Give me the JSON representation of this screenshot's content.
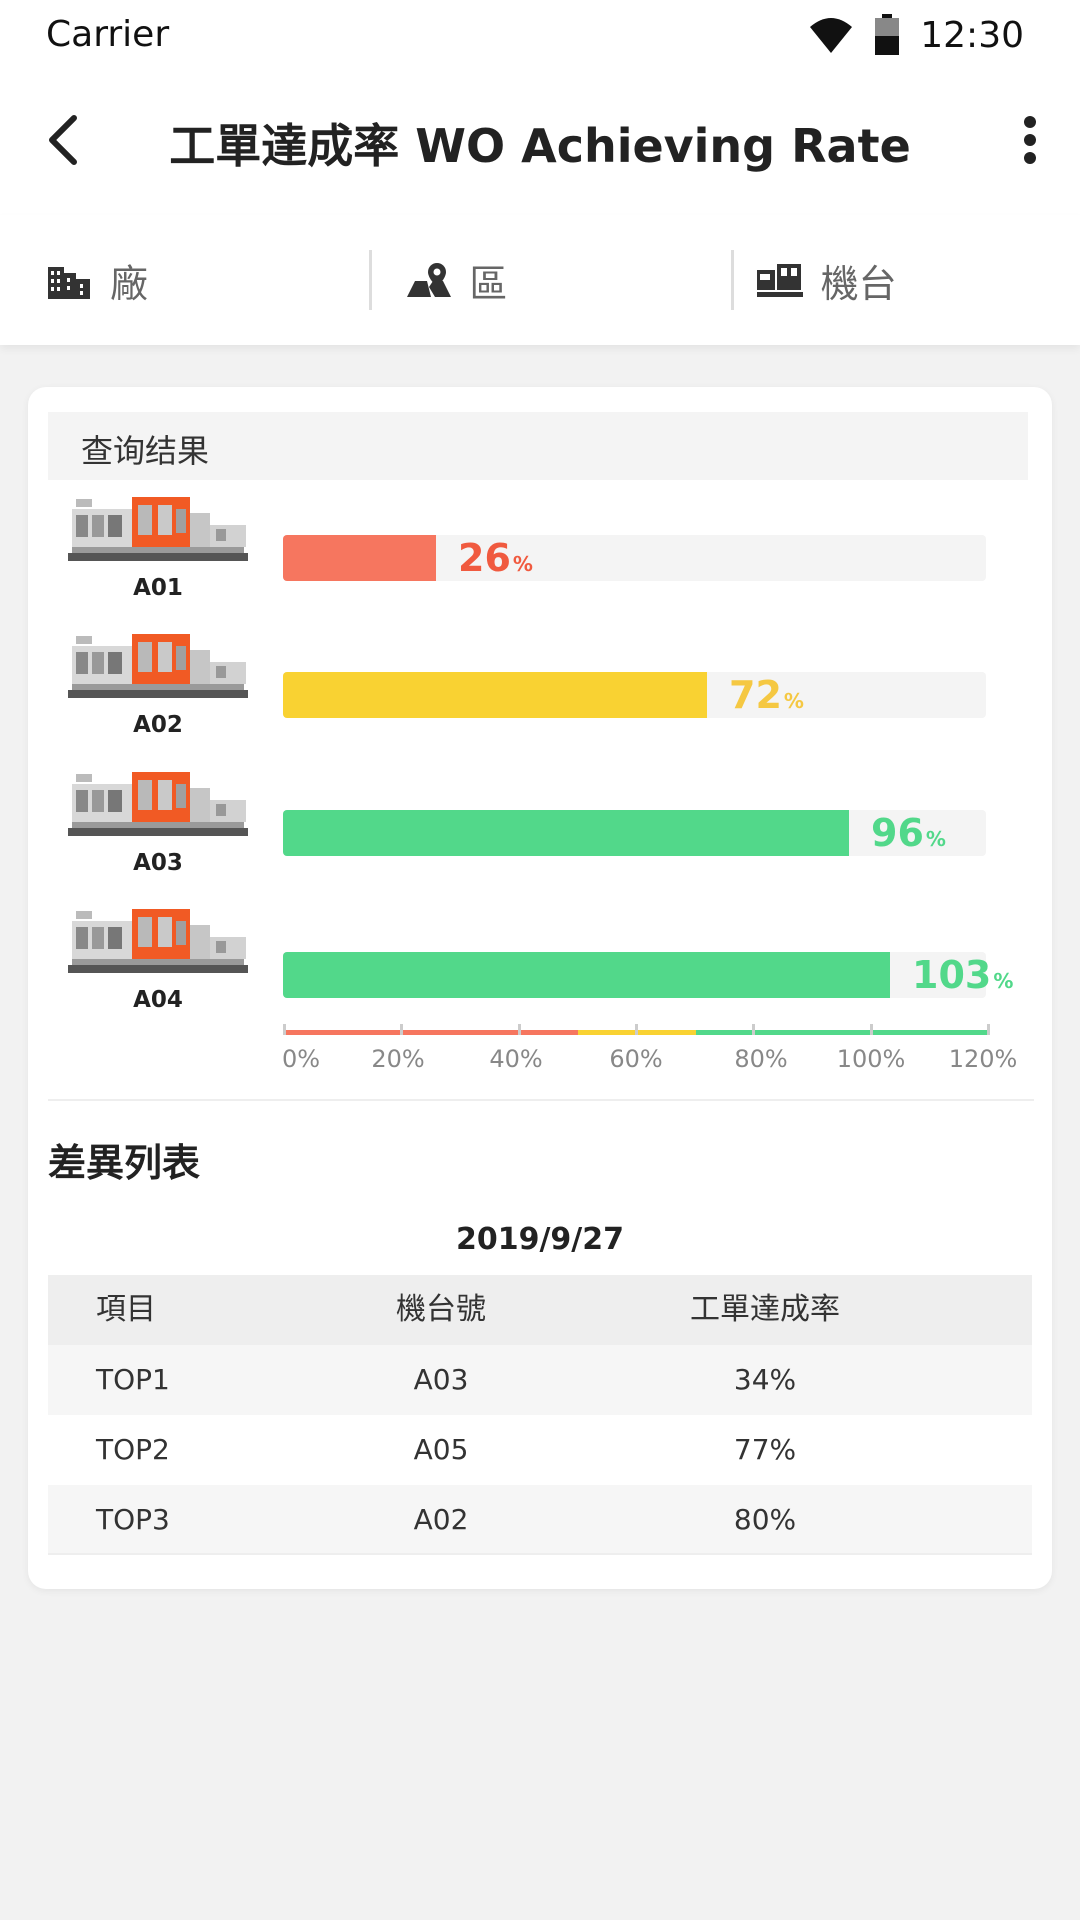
{
  "status_bar": {
    "carrier": "Carrier",
    "time": "12:30"
  },
  "header": {
    "title": "工單達成率 WO Achieving Rate"
  },
  "tabs": [
    {
      "label": "廠",
      "icon": "factory-icon"
    },
    {
      "label": "區",
      "icon": "map-pin-icon"
    },
    {
      "label": "機台",
      "icon": "machine-icon"
    }
  ],
  "query": {
    "title": "查询结果"
  },
  "machines": [
    {
      "id": "A01",
      "rate": 26,
      "rate_text": "26",
      "unit": "%",
      "color": "#f6765f",
      "text_color": "#f05a3f"
    },
    {
      "id": "A02",
      "rate": 72,
      "rate_text": "72",
      "unit": "%",
      "color": "#f9d232",
      "text_color": "#f5c842"
    },
    {
      "id": "A03",
      "rate": 96,
      "rate_text": "96",
      "unit": "%",
      "color": "#52d88a",
      "text_color": "#52d88a"
    },
    {
      "id": "A04",
      "rate": 103,
      "rate_text": "103",
      "unit": "%",
      "color": "#52d88a",
      "text_color": "#52d88a"
    }
  ],
  "chart_data": {
    "type": "bar",
    "categories": [
      "A01",
      "A02",
      "A03",
      "A04"
    ],
    "values": [
      26,
      72,
      96,
      103
    ],
    "xlim": [
      0,
      120
    ],
    "ticks": [
      "0%",
      "20%",
      "40%",
      "60%",
      "80%",
      "100%",
      "120%"
    ]
  },
  "diff": {
    "title": "差異列表",
    "date": "2019/9/27",
    "headers": [
      "項目",
      "機台號",
      "工單達成率"
    ],
    "rows": [
      [
        "TOP1",
        "A03",
        "34%"
      ],
      [
        "TOP2",
        "A05",
        "77%"
      ],
      [
        "TOP3",
        "A02",
        "80%"
      ]
    ]
  },
  "colors": {
    "red": "#f6765f",
    "yellow": "#f9d232",
    "green": "#52d88a"
  }
}
